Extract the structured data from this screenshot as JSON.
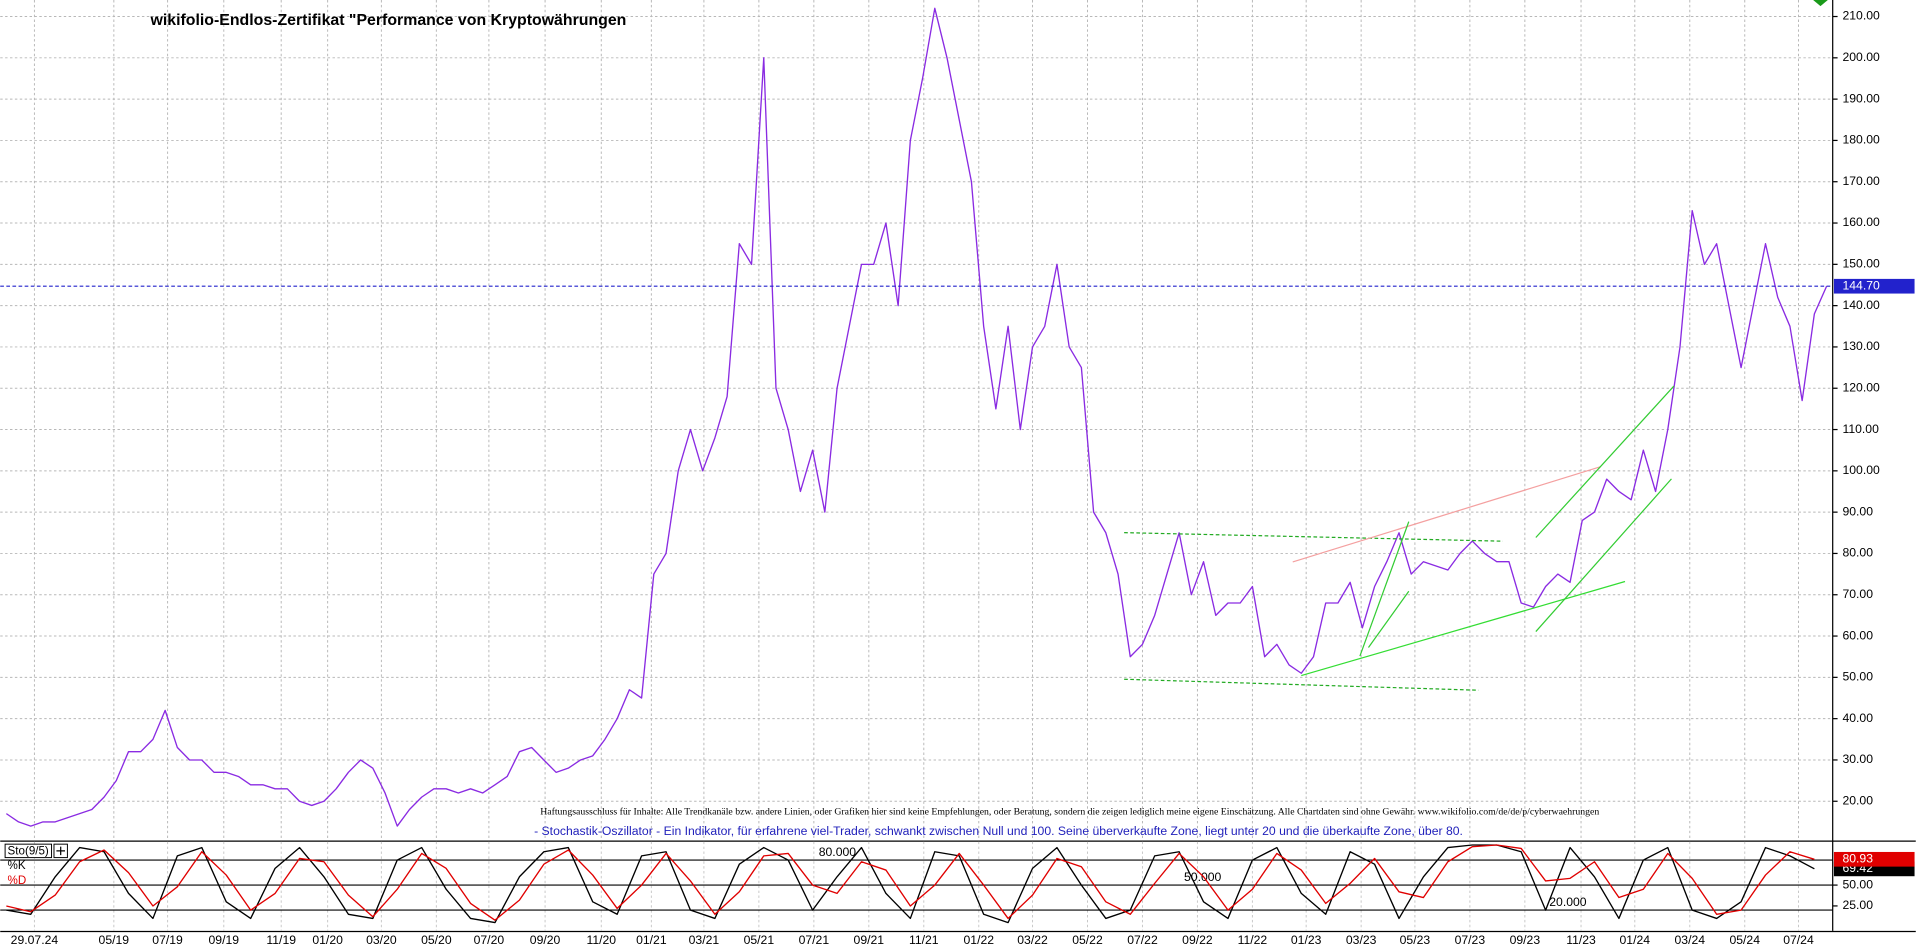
{
  "chart_data": [
    {
      "type": "line",
      "title": "wikifolio-Endlos-Zertifikat \"Performance von Kryptowährungen",
      "disclaimer": "Haftungsausschluss für Inhalte: Alle Trendkanäle bzw. andere Linien, oder Grafiken hier sind keine Empfehlungen, oder Beratung, sondern die zeigen lediglich meine eigene Einschätzung. Alle Chartdaten sind ohne Gewähr. www.wikifolio.com/de/de/p/cyberwaehrungen",
      "note": "- Stochastik-Oszillator - Ein Indikator, für erfahrene viel-Trader, schwankt zwischen Null und 100. Seine überverkaufte Zone, liegt unter 20 und die überkaufte Zone, über 80.",
      "series": [
        {
          "color": "#8a2be2",
          "last_value_label": "144.70",
          "values": [
            17,
            15,
            14,
            15,
            15,
            16,
            17,
            18,
            21,
            25,
            32,
            32,
            35,
            42,
            33,
            30,
            30,
            27,
            27,
            26,
            24,
            24,
            23,
            23,
            20,
            19,
            20,
            23,
            27,
            30,
            28,
            22,
            14,
            18,
            21,
            23,
            23,
            22,
            23,
            22,
            24,
            26,
            32,
            33,
            30,
            27,
            28,
            30,
            31,
            35,
            40,
            47,
            45,
            75,
            80,
            100,
            110,
            100,
            108,
            118,
            155,
            150,
            200,
            120,
            110,
            95,
            105,
            90,
            120,
            135,
            150,
            150,
            160,
            140,
            180,
            195,
            212,
            200,
            185,
            170,
            135,
            115,
            135,
            110,
            130,
            135,
            150,
            130,
            125,
            90,
            85,
            75,
            55,
            58,
            65,
            75,
            85,
            70,
            78,
            65,
            68,
            68,
            72,
            55,
            58,
            53,
            51,
            55,
            68,
            68,
            73,
            62,
            72,
            78,
            85,
            75,
            78,
            77,
            76,
            80,
            83,
            80,
            78,
            78,
            68,
            67,
            72,
            75,
            73,
            88,
            90,
            98,
            95,
            93,
            105,
            95,
            110,
            130,
            163,
            150,
            155,
            140,
            125,
            140,
            155,
            142,
            135,
            117,
            138,
            144.7
          ]
        }
      ],
      "ylim": [
        10.5,
        214
      ],
      "yticks": [
        {
          "value": 20,
          "label": "20.00"
        },
        {
          "value": 30,
          "label": "30.00"
        },
        {
          "value": 40,
          "label": "40.00"
        },
        {
          "value": 50,
          "label": "50.00"
        },
        {
          "value": 60,
          "label": "60.00"
        },
        {
          "value": 70,
          "label": "70.00"
        },
        {
          "value": 80,
          "label": "80.00"
        },
        {
          "value": 90,
          "label": "90.00"
        },
        {
          "value": 100,
          "label": "100.00"
        },
        {
          "value": 110,
          "label": "110.00"
        },
        {
          "value": 120,
          "label": "120.00"
        },
        {
          "value": 130,
          "label": "130.00"
        },
        {
          "value": 140,
          "label": "140.00"
        },
        {
          "value": 150,
          "label": "150.00"
        },
        {
          "value": 160,
          "label": "160.00"
        },
        {
          "value": 170,
          "label": "170.00"
        },
        {
          "value": 180,
          "label": "180.00"
        },
        {
          "value": 190,
          "label": "190.00"
        },
        {
          "value": 200,
          "label": "200.00"
        },
        {
          "value": 210,
          "label": "210.00"
        }
      ],
      "xticks": [
        {
          "value": 2.3,
          "label": "29.07.24"
        },
        {
          "value": 8.8,
          "label": "05/19"
        },
        {
          "value": 13.2,
          "label": "07/19"
        },
        {
          "value": 17.8,
          "label": "09/19"
        },
        {
          "value": 22.5,
          "label": "11/19"
        },
        {
          "value": 26.3,
          "label": "01/20"
        },
        {
          "value": 30.7,
          "label": "03/20"
        },
        {
          "value": 35.2,
          "label": "05/20"
        },
        {
          "value": 39.5,
          "label": "07/20"
        },
        {
          "value": 44.1,
          "label": "09/20"
        },
        {
          "value": 48.7,
          "label": "11/20"
        },
        {
          "value": 52.8,
          "label": "01/21"
        },
        {
          "value": 57.1,
          "label": "03/21"
        },
        {
          "value": 61.6,
          "label": "05/21"
        },
        {
          "value": 66.1,
          "label": "07/21"
        },
        {
          "value": 70.6,
          "label": "09/21"
        },
        {
          "value": 75.1,
          "label": "11/21"
        },
        {
          "value": 79.6,
          "label": "01/22"
        },
        {
          "value": 84,
          "label": "03/22"
        },
        {
          "value": 88.5,
          "label": "05/22"
        },
        {
          "value": 93,
          "label": "07/22"
        },
        {
          "value": 97.5,
          "label": "09/22"
        },
        {
          "value": 102,
          "label": "11/22"
        },
        {
          "value": 106.4,
          "label": "01/23"
        },
        {
          "value": 110.9,
          "label": "03/23"
        },
        {
          "value": 115.3,
          "label": "05/23"
        },
        {
          "value": 119.8,
          "label": "07/23"
        },
        {
          "value": 124.3,
          "label": "09/23"
        },
        {
          "value": 128.9,
          "label": "11/23"
        },
        {
          "value": 133.3,
          "label": "01/24"
        },
        {
          "value": 137.8,
          "label": "03/24"
        },
        {
          "value": 142.3,
          "label": "05/24"
        },
        {
          "value": 146.7,
          "label": "07/24"
        }
      ],
      "grid": true
    },
    {
      "type": "line",
      "indicator": "Sto(9/5)",
      "series": [
        {
          "name": "%K",
          "color": "#000000",
          "last_value_label": "69.42",
          "values": [
            20,
            15,
            60,
            95,
            90,
            40,
            10,
            85,
            95,
            30,
            10,
            70,
            95,
            60,
            15,
            10,
            80,
            95,
            45,
            10,
            5,
            60,
            90,
            95,
            30,
            15,
            85,
            90,
            20,
            10,
            75,
            95,
            80,
            20,
            60,
            95,
            40,
            10,
            90,
            85,
            15,
            5,
            70,
            95,
            50,
            10,
            20,
            85,
            90,
            30,
            10,
            80,
            95,
            40,
            15,
            90,
            75,
            10,
            60,
            95,
            98,
            98,
            90,
            20,
            95,
            60,
            10,
            80,
            95,
            20,
            10,
            30,
            95,
            85,
            69.42
          ]
        },
        {
          "name": "%D",
          "color": "#e00000",
          "last_value_label": "80.93",
          "values": [
            25,
            18,
            38,
            78,
            92,
            65,
            25,
            48,
            90,
            62,
            20,
            40,
            82,
            78,
            38,
            12,
            45,
            88,
            70,
            28,
            8,
            32,
            75,
            92,
            62,
            22,
            50,
            88,
            55,
            15,
            42,
            85,
            88,
            50,
            40,
            78,
            68,
            25,
            50,
            88,
            50,
            10,
            38,
            82,
            72,
            30,
            15,
            52,
            88,
            60,
            20,
            45,
            88,
            68,
            28,
            52,
            82,
            42,
            35,
            78,
            96,
            98,
            94,
            55,
            58,
            78,
            35,
            45,
            88,
            58,
            15,
            20,
            62,
            90,
            80.93
          ]
        }
      ],
      "ylim": [
        -2,
        102
      ],
      "yticks": [
        {
          "value": 50,
          "label": "50.00"
        },
        {
          "value": 25,
          "label": "25.00"
        }
      ],
      "levels": [
        {
          "value": 80,
          "label": "80.000"
        },
        {
          "value": 50,
          "label": "50.000"
        },
        {
          "value": 20,
          "label": "20.000"
        }
      ]
    }
  ]
}
